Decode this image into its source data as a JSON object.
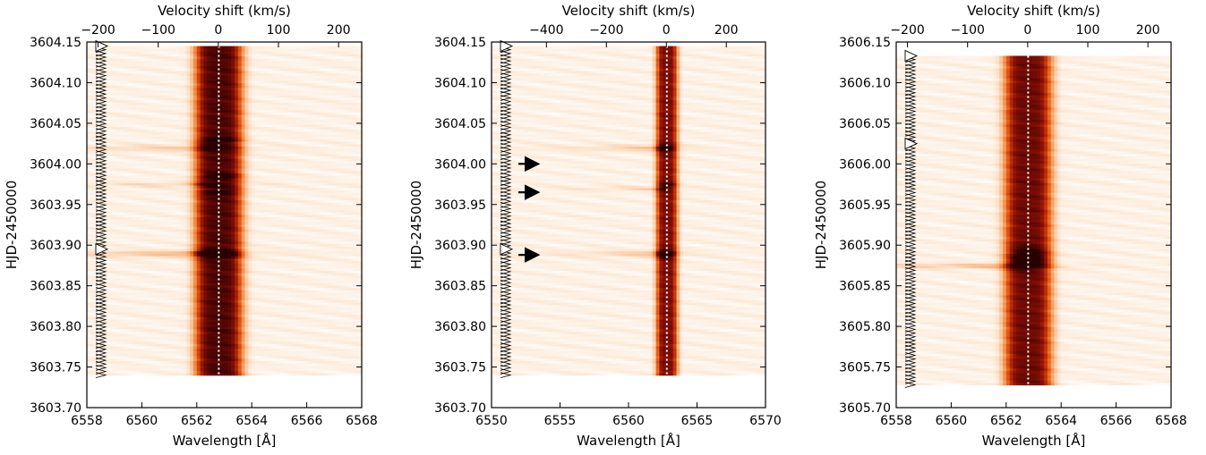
{
  "chart_data": [
    {
      "type": "heatmap",
      "xlabel": "Wavelength [Å]",
      "x2label": "Velocity shift (km/s)",
      "ylabel": "HJD-2450000",
      "xlim": [
        6558,
        6568
      ],
      "ylim": [
        3603.7,
        3604.15
      ],
      "x2lim": [
        -218.7,
        238.5
      ],
      "xticks": [
        "6558",
        "6560",
        "6562",
        "6564",
        "6566",
        "6568"
      ],
      "yticks": [
        "3603.70",
        "3603.75",
        "3603.80",
        "3603.85",
        "3603.90",
        "3603.95",
        "3604.00",
        "3604.05",
        "3604.10",
        "3604.15"
      ],
      "x2ticks": [
        {
          "v": -200,
          "label": "−200"
        },
        {
          "v": -100,
          "label": "−100"
        },
        {
          "v": 0,
          "label": "0"
        },
        {
          "v": 100,
          "label": "100"
        },
        {
          "v": 200,
          "label": "200"
        }
      ],
      "data_xrange": [
        6558,
        6568
      ],
      "data_yrange": [
        3603.74,
        3604.145
      ],
      "line_center": 6562.8,
      "line_width": 0.55,
      "line_peak": 0.85,
      "emission_boosts": [
        {
          "t": 3604.03,
          "w": 0.003,
          "a": 0.25
        },
        {
          "t": 3603.985,
          "w": 0.003,
          "a": 0.2
        },
        {
          "t": 3603.965,
          "w": 0.003,
          "a": 0.15
        },
        {
          "t": 3603.89,
          "w": 0.004,
          "a": 0.35
        }
      ],
      "flare_bands": [
        {
          "t": 3604.02,
          "w": 0.004,
          "a": 0.15
        },
        {
          "t": 3603.975,
          "w": 0.003,
          "a": 0.12
        },
        {
          "t": 3603.89,
          "w": 0.004,
          "a": 0.22
        }
      ],
      "exposure_markers": {
        "start": 3603.74,
        "end": 3604.145,
        "count": 90,
        "highlight": [
          3604.145,
          3603.895
        ]
      },
      "arrows": []
    },
    {
      "type": "heatmap",
      "xlabel": "Wavelength [Å]",
      "x2label": "Velocity shift (km/s)",
      "ylabel": "HJD-2450000",
      "xlim": [
        6550,
        6570
      ],
      "ylim": [
        3603.7,
        3604.15
      ],
      "x2lim": [
        -583.2,
        330.7
      ],
      "xticks": [
        "6550",
        "6555",
        "6560",
        "6565",
        "6570"
      ],
      "yticks": [
        "3603.70",
        "3603.75",
        "3603.80",
        "3603.85",
        "3603.90",
        "3603.95",
        "3604.00",
        "3604.05",
        "3604.10",
        "3604.15"
      ],
      "x2ticks": [
        {
          "v": -400,
          "label": "−400"
        },
        {
          "v": -200,
          "label": "−200"
        },
        {
          "v": 0,
          "label": "0"
        },
        {
          "v": 200,
          "label": "200"
        }
      ],
      "data_xrange": [
        6550,
        6570
      ],
      "data_yrange": [
        3603.74,
        3604.145
      ],
      "line_center": 6562.8,
      "line_width": 0.5,
      "line_peak": 0.75,
      "emission_boosts": [
        {
          "t": 3604.02,
          "w": 0.004,
          "a": 0.2
        },
        {
          "t": 3603.975,
          "w": 0.003,
          "a": 0.18
        },
        {
          "t": 3603.89,
          "w": 0.004,
          "a": 0.3
        }
      ],
      "flare_bands": [
        {
          "t": 3604.02,
          "w": 0.004,
          "a": 0.18
        },
        {
          "t": 3603.97,
          "w": 0.003,
          "a": 0.12
        },
        {
          "t": 3603.89,
          "w": 0.004,
          "a": 0.18
        }
      ],
      "exposure_markers": {
        "start": 3603.74,
        "end": 3604.145,
        "count": 90,
        "highlight": [
          3604.145,
          3603.895
        ]
      },
      "arrows": [
        3604.0,
        3603.965,
        3603.888
      ]
    },
    {
      "type": "heatmap",
      "xlabel": "Wavelength [Å]",
      "x2label": "Velocity shift (km/s)",
      "ylabel": "HJD-2450000",
      "xlim": [
        6558,
        6568
      ],
      "ylim": [
        3605.7,
        3606.15
      ],
      "x2lim": [
        -218.7,
        238.5
      ],
      "xticks": [
        "6558",
        "6560",
        "6562",
        "6564",
        "6566",
        "6568"
      ],
      "yticks": [
        "3605.70",
        "3605.75",
        "3605.80",
        "3605.85",
        "3605.90",
        "3605.95",
        "3606.00",
        "3606.05",
        "3606.10",
        "3606.15"
      ],
      "x2ticks": [
        {
          "v": -200,
          "label": "−200"
        },
        {
          "v": -100,
          "label": "−100"
        },
        {
          "v": 0,
          "label": "0"
        },
        {
          "v": 100,
          "label": "100"
        },
        {
          "v": 200,
          "label": "200"
        }
      ],
      "data_xrange": [
        6558,
        6568
      ],
      "data_yrange": [
        3605.728,
        3606.133
      ],
      "line_center": 6562.8,
      "line_width": 0.55,
      "line_peak": 0.78,
      "emission_boosts": [
        {
          "t": 3605.885,
          "w": 0.012,
          "a": 0.3
        }
      ],
      "flare_bands": [
        {
          "t": 3605.875,
          "w": 0.003,
          "a": 0.22
        }
      ],
      "exposure_markers": {
        "start": 3605.728,
        "end": 3606.133,
        "count": 90,
        "highlight": [
          3606.133,
          3606.025
        ]
      },
      "arrows": []
    }
  ]
}
